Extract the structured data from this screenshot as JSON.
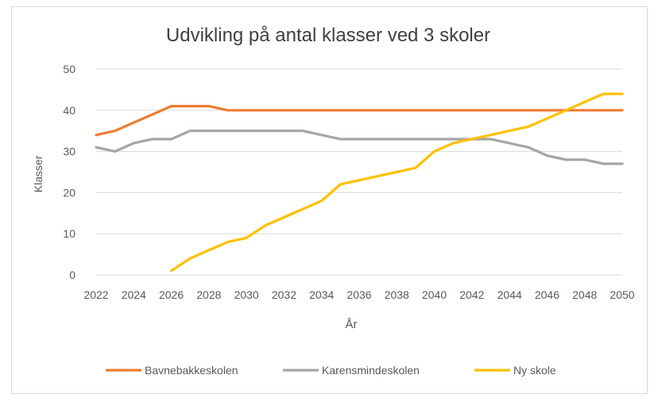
{
  "chart_data": {
    "type": "line",
    "title": "Udvikling på antal klasser ved 3 skoler",
    "xlabel": "År",
    "ylabel": "Klasser",
    "x": [
      2022,
      2023,
      2024,
      2025,
      2026,
      2027,
      2028,
      2029,
      2030,
      2031,
      2032,
      2033,
      2034,
      2035,
      2036,
      2037,
      2038,
      2039,
      2040,
      2041,
      2042,
      2043,
      2044,
      2045,
      2046,
      2047,
      2048,
      2049,
      2050
    ],
    "xticks": [
      "2022",
      "2024",
      "2026",
      "2028",
      "2030",
      "2032",
      "2034",
      "2036",
      "2038",
      "2040",
      "2042",
      "2044",
      "2046",
      "2048",
      "2050"
    ],
    "xlim": [
      2022,
      2050
    ],
    "ylim": [
      0,
      50
    ],
    "yticks": [
      "0",
      "10",
      "20",
      "30",
      "40",
      "50"
    ],
    "grid": true,
    "legend_position": "bottom",
    "series": [
      {
        "name": "Bavnebakkeskolen",
        "color": "#ED7D31",
        "values": [
          34,
          35,
          37,
          39,
          41,
          41,
          41,
          40,
          40,
          40,
          40,
          40,
          40,
          40,
          40,
          40,
          40,
          40,
          40,
          40,
          40,
          40,
          40,
          40,
          40,
          40,
          40,
          40,
          40
        ]
      },
      {
        "name": "Karensmindeskolen",
        "color": "#A5A5A5",
        "values": [
          31,
          30,
          32,
          33,
          33,
          35,
          35,
          35,
          35,
          35,
          35,
          35,
          34,
          33,
          33,
          33,
          33,
          33,
          33,
          33,
          33,
          33,
          32,
          31,
          29,
          28,
          28,
          27,
          27
        ]
      },
      {
        "name": "Ny skole",
        "color": "#FFC000",
        "values": [
          null,
          null,
          null,
          null,
          1,
          4,
          6,
          8,
          9,
          12,
          14,
          16,
          18,
          22,
          23,
          24,
          25,
          26,
          30,
          32,
          33,
          34,
          35,
          36,
          38,
          40,
          42,
          44,
          44
        ]
      }
    ]
  }
}
